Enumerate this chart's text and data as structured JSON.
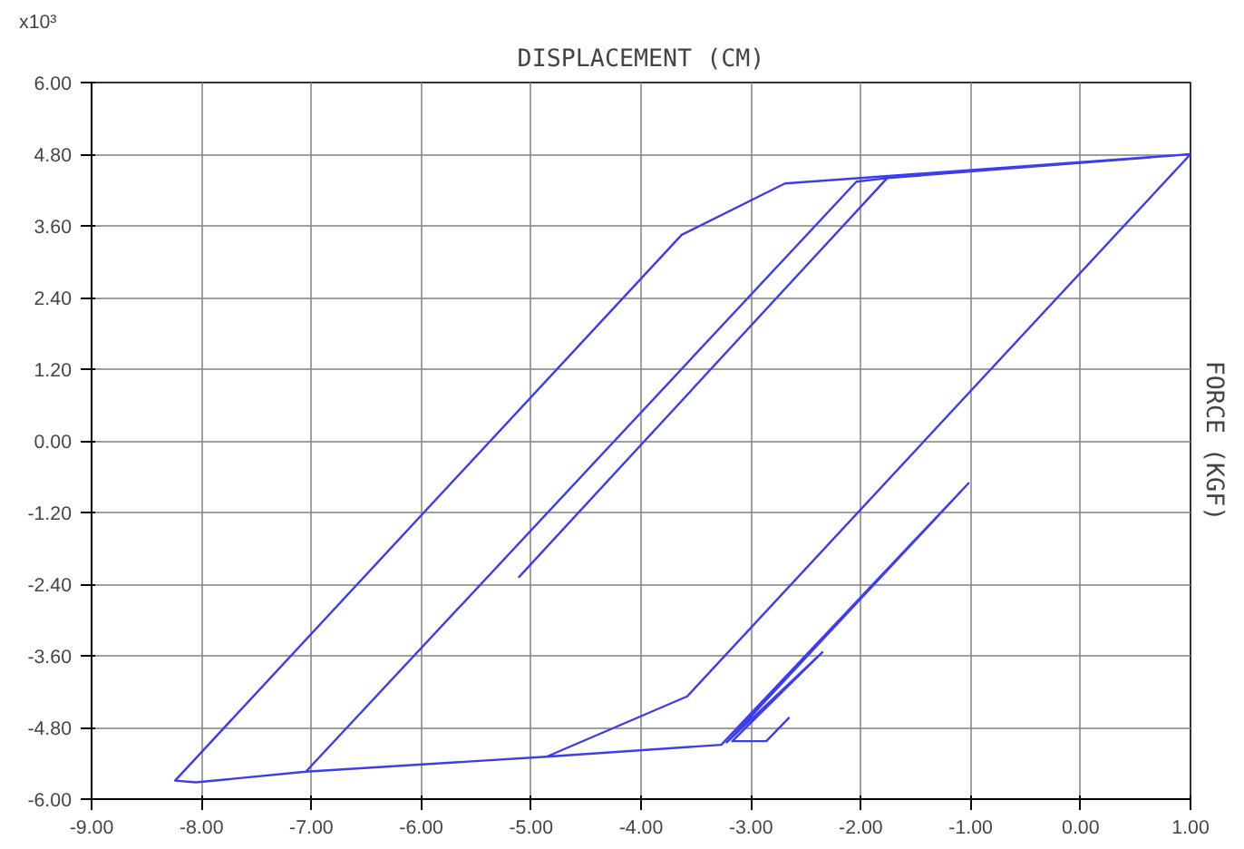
{
  "chart_data": {
    "type": "line",
    "xlabel": "DISPLACEMENT (CM)",
    "ylabel": "FORCE (KGF)",
    "annotations": [
      "x10³"
    ],
    "x": [
      -2.65,
      -2.86,
      -3.17,
      -2.35,
      -3.22,
      -1.02,
      -3.27,
      -4.86,
      -7.05,
      -2.04,
      -1.76,
      -5.11,
      -1.76,
      1.0,
      -3.58,
      -4.86,
      -7.05,
      -8.05,
      -8.24,
      -3.63,
      -2.69,
      1.0
    ],
    "series": [
      {
        "color": "#3c3cf0",
        "values": [
          -4.63,
          -5.03,
          -5.03,
          -3.54,
          -5.05,
          -0.71,
          -5.09,
          -5.29,
          -5.54,
          4.34,
          4.4,
          -2.28,
          4.4,
          4.8,
          -4.28,
          -5.29,
          -5.54,
          -5.72,
          -5.69,
          3.45,
          4.31,
          4.8
        ]
      }
    ],
    "xlim": [
      -9,
      1
    ],
    "ylim": [
      -6,
      6
    ],
    "xticks": [
      {
        "value": -9,
        "label": "-9.00"
      },
      {
        "value": -8,
        "label": "-8.00"
      },
      {
        "value": -7,
        "label": "-7.00"
      },
      {
        "value": -6,
        "label": "-6.00"
      },
      {
        "value": -5,
        "label": "-5.00"
      },
      {
        "value": -4,
        "label": "-4.00"
      },
      {
        "value": -3,
        "label": "-3.00"
      },
      {
        "value": -2,
        "label": "-2.00"
      },
      {
        "value": -1,
        "label": "-1.00"
      },
      {
        "value": 0,
        "label": "0.00"
      },
      {
        "value": 1,
        "label": "1.00"
      }
    ],
    "yticks": [
      {
        "value": -6,
        "label": "-6.00"
      },
      {
        "value": -4.8,
        "label": "-4.80"
      },
      {
        "value": -3.6,
        "label": "-3.60"
      },
      {
        "value": -2.4,
        "label": "-2.40"
      },
      {
        "value": -1.2,
        "label": "-1.20"
      },
      {
        "value": 0,
        "label": "0.00"
      },
      {
        "value": 1.2,
        "label": "1.20"
      },
      {
        "value": 2.4,
        "label": "2.40"
      },
      {
        "value": 3.6,
        "label": "3.60"
      },
      {
        "value": 4.8,
        "label": "4.80"
      },
      {
        "value": 6,
        "label": "6.00"
      }
    ],
    "grid": true
  }
}
